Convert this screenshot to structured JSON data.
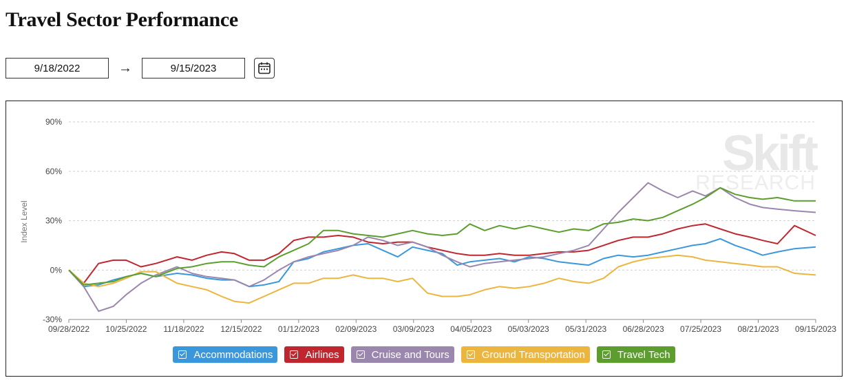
{
  "page": {
    "title": "Travel Sector Performance"
  },
  "dates": {
    "start": "9/18/2022",
    "arrow": "→",
    "end": "9/15/2023"
  },
  "watermark": {
    "brand": "Skift",
    "sub": "RESEARCH"
  },
  "chart_data": {
    "type": "line",
    "title": "",
    "xlabel": "",
    "ylabel": "Index Level",
    "ylim": [
      -30,
      90
    ],
    "y_ticks": [
      -30,
      0,
      30,
      60,
      90
    ],
    "y_tick_labels": [
      "-30%",
      "0%",
      "30%",
      "60%",
      "90%"
    ],
    "x_tick_labels": [
      "09/28/2022",
      "10/25/2022",
      "11/18/2022",
      "12/15/2022",
      "01/12/2023",
      "02/09/2023",
      "03/09/2023",
      "04/05/2023",
      "05/03/2023",
      "05/31/2023",
      "06/28/2023",
      "07/25/2023",
      "08/21/2023",
      "09/15/2023"
    ],
    "grid": true,
    "legend_position": "bottom",
    "x": [
      "2022-09-28",
      "2022-10-05",
      "2022-10-12",
      "2022-10-19",
      "2022-10-25",
      "2022-11-01",
      "2022-11-08",
      "2022-11-18",
      "2022-11-25",
      "2022-12-02",
      "2022-12-09",
      "2022-12-15",
      "2022-12-22",
      "2022-12-29",
      "2023-01-05",
      "2023-01-12",
      "2023-01-19",
      "2023-01-26",
      "2023-02-02",
      "2023-02-09",
      "2023-02-16",
      "2023-02-23",
      "2023-03-02",
      "2023-03-09",
      "2023-03-16",
      "2023-03-23",
      "2023-03-30",
      "2023-04-05",
      "2023-04-12",
      "2023-04-19",
      "2023-04-26",
      "2023-05-03",
      "2023-05-10",
      "2023-05-17",
      "2023-05-24",
      "2023-05-31",
      "2023-06-07",
      "2023-06-14",
      "2023-06-21",
      "2023-06-28",
      "2023-07-05",
      "2023-07-12",
      "2023-07-19",
      "2023-07-25",
      "2023-08-01",
      "2023-08-08",
      "2023-08-15",
      "2023-08-21",
      "2023-08-28",
      "2023-09-05",
      "2023-09-15"
    ],
    "series": [
      {
        "name": "Accommodations",
        "color": "#3a97dc",
        "values": [
          0,
          -10,
          -9,
          -6,
          -4,
          -2,
          -4,
          -2,
          -3,
          -5,
          -6,
          -6,
          -10,
          -9,
          -7,
          5,
          7,
          11,
          13,
          15,
          16,
          12,
          8,
          14,
          12,
          10,
          3,
          5,
          6,
          7,
          5,
          8,
          7,
          5,
          4,
          3,
          7,
          9,
          8,
          9,
          11,
          13,
          15,
          16,
          19,
          15,
          12,
          9,
          11,
          13,
          14
        ]
      },
      {
        "name": "Airlines",
        "color": "#c0262d",
        "values": [
          0,
          -8,
          4,
          6,
          6,
          2,
          4,
          8,
          6,
          9,
          11,
          10,
          6,
          6,
          10,
          18,
          20,
          20,
          21,
          20,
          17,
          16,
          17,
          17,
          14,
          12,
          10,
          9,
          9,
          10,
          9,
          9,
          10,
          11,
          11,
          12,
          15,
          18,
          20,
          20,
          22,
          25,
          27,
          28,
          25,
          22,
          20,
          18,
          16,
          27,
          21
        ]
      },
      {
        "name": "Cruise and Tours",
        "color": "#9b86ad",
        "values": [
          0,
          -10,
          -25,
          -22,
          -15,
          -8,
          -3,
          2,
          -2,
          -4,
          -5,
          -6,
          -10,
          -6,
          0,
          5,
          8,
          10,
          12,
          15,
          20,
          18,
          15,
          17,
          14,
          9,
          5,
          2,
          4,
          5,
          6,
          7,
          8,
          10,
          12,
          15,
          25,
          35,
          44,
          53,
          48,
          44,
          48,
          45,
          50,
          44,
          40,
          38,
          37,
          36,
          35
        ]
      },
      {
        "name": "Ground Transportation",
        "color": "#ecb53e",
        "values": [
          0,
          -8,
          -10,
          -8,
          -5,
          -1,
          -1,
          -8,
          -10,
          -12,
          -16,
          -19,
          -20,
          -16,
          -12,
          -8,
          -8,
          -5,
          -5,
          -3,
          -5,
          -5,
          -7,
          -5,
          -14,
          -16,
          -16,
          -15,
          -12,
          -10,
          -11,
          -10,
          -8,
          -5,
          -7,
          -8,
          -5,
          2,
          5,
          7,
          8,
          9,
          8,
          6,
          5,
          4,
          3,
          2,
          2,
          -2,
          -3
        ]
      },
      {
        "name": "Travel Tech",
        "color": "#5b9e2e",
        "values": [
          0,
          -9,
          -8,
          -7,
          -4,
          -2,
          -4,
          1,
          2,
          4,
          5,
          5,
          3,
          2,
          8,
          12,
          16,
          24,
          24,
          22,
          21,
          20,
          22,
          24,
          22,
          21,
          22,
          28,
          24,
          27,
          25,
          27,
          25,
          23,
          25,
          24,
          28,
          29,
          31,
          30,
          32,
          36,
          40,
          44,
          50,
          46,
          44,
          43,
          44,
          42,
          42
        ]
      }
    ]
  }
}
